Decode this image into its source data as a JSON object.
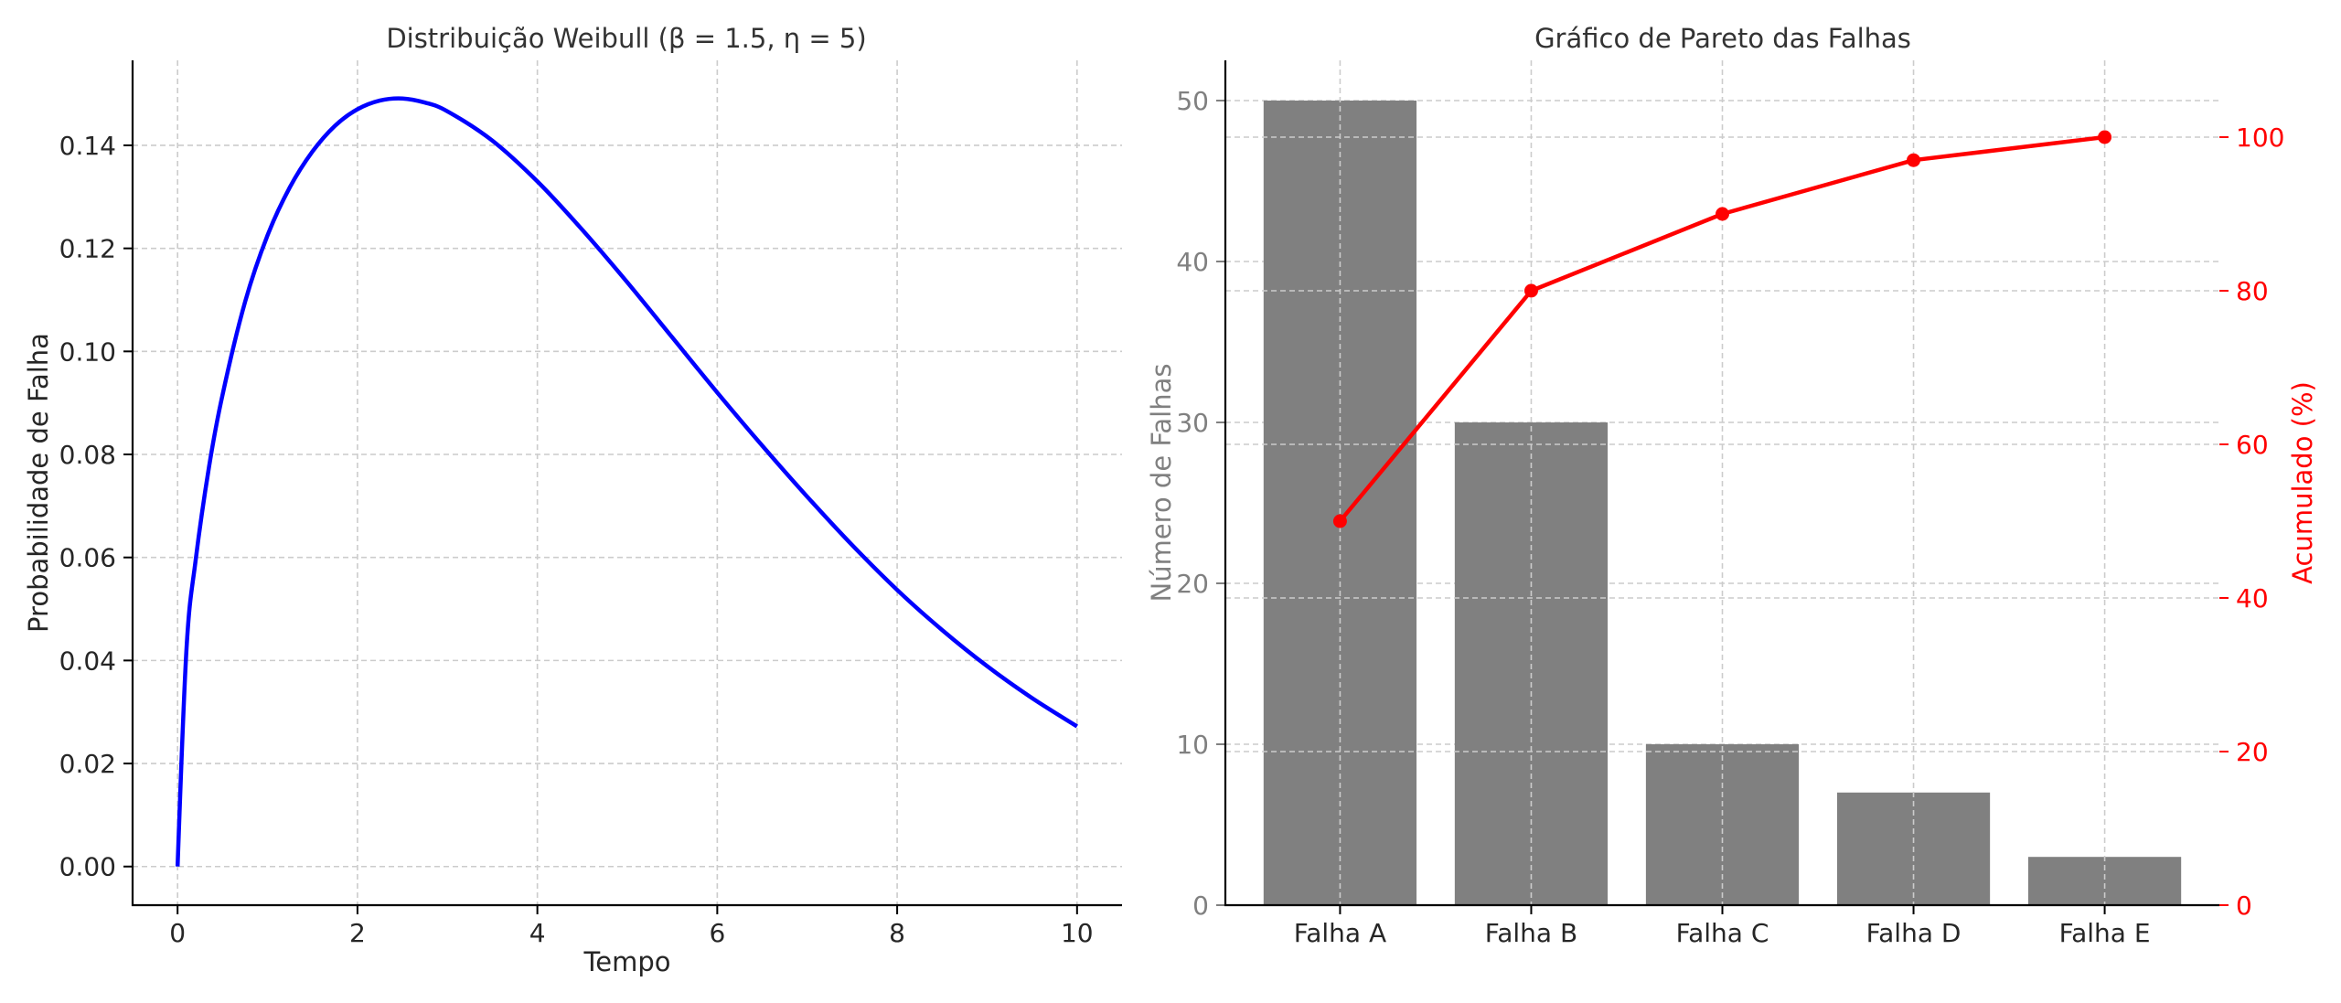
{
  "chart_data": [
    {
      "type": "line",
      "title": "Distribuição Weibull (β = 1.5, η = 5)",
      "xlabel": "Tempo",
      "ylabel": "Probabilidade de Falha",
      "xlim": [
        -0.5,
        10.5
      ],
      "ylim": [
        -0.0075,
        0.1565
      ],
      "x_ticks": [
        "0",
        "2",
        "4",
        "6",
        "8",
        "10"
      ],
      "y_ticks": [
        "0.00",
        "0.02",
        "0.04",
        "0.06",
        "0.08",
        "0.10",
        "0.12",
        "0.14"
      ],
      "grid": true,
      "line_color": "#0000ff",
      "series": [
        {
          "x": [
            0,
            0.1,
            0.2,
            0.35,
            0.5,
            0.75,
            1.0,
            1.25,
            1.5,
            1.75,
            2.0,
            2.25,
            2.5,
            2.75,
            3.0,
            3.5,
            4.0,
            4.5,
            5.0,
            5.5,
            6.0,
            6.5,
            7.0,
            7.5,
            8.0,
            8.5,
            9.0,
            9.5,
            10.0
          ],
          "y": [
            0.0,
            0.0424,
            0.0594,
            0.0776,
            0.0916,
            0.1096,
            0.1225,
            0.1319,
            0.1388,
            0.1438,
            0.147,
            0.1487,
            0.1491,
            0.1483,
            0.1466,
            0.1409,
            0.133,
            0.1236,
            0.1134,
            0.1027,
            0.092,
            0.0817,
            0.0718,
            0.0624,
            0.0537,
            0.0459,
            0.0389,
            0.0327,
            0.0272
          ]
        }
      ]
    },
    {
      "type": "bar",
      "title": "Gráfico de Pareto das Falhas",
      "categories": [
        "Falha A",
        "Falha B",
        "Falha C",
        "Falha D",
        "Falha E"
      ],
      "ylabel": "Número de Falhas",
      "y2label": "Acumulado (%)",
      "ylim": [
        0,
        52.5
      ],
      "y2lim": [
        0,
        110
      ],
      "y_ticks": [
        "0",
        "10",
        "20",
        "30",
        "40",
        "50"
      ],
      "y2_ticks": [
        "0",
        "20",
        "40",
        "60",
        "80",
        "100"
      ],
      "grid": true,
      "bar_color": "#808080",
      "line_color": "#ff0000",
      "series": [
        {
          "type": "bar",
          "values": [
            50,
            30,
            10,
            7,
            3
          ]
        },
        {
          "type": "line",
          "axis": "right",
          "values": [
            50,
            80,
            90,
            97,
            100
          ]
        }
      ]
    }
  ]
}
